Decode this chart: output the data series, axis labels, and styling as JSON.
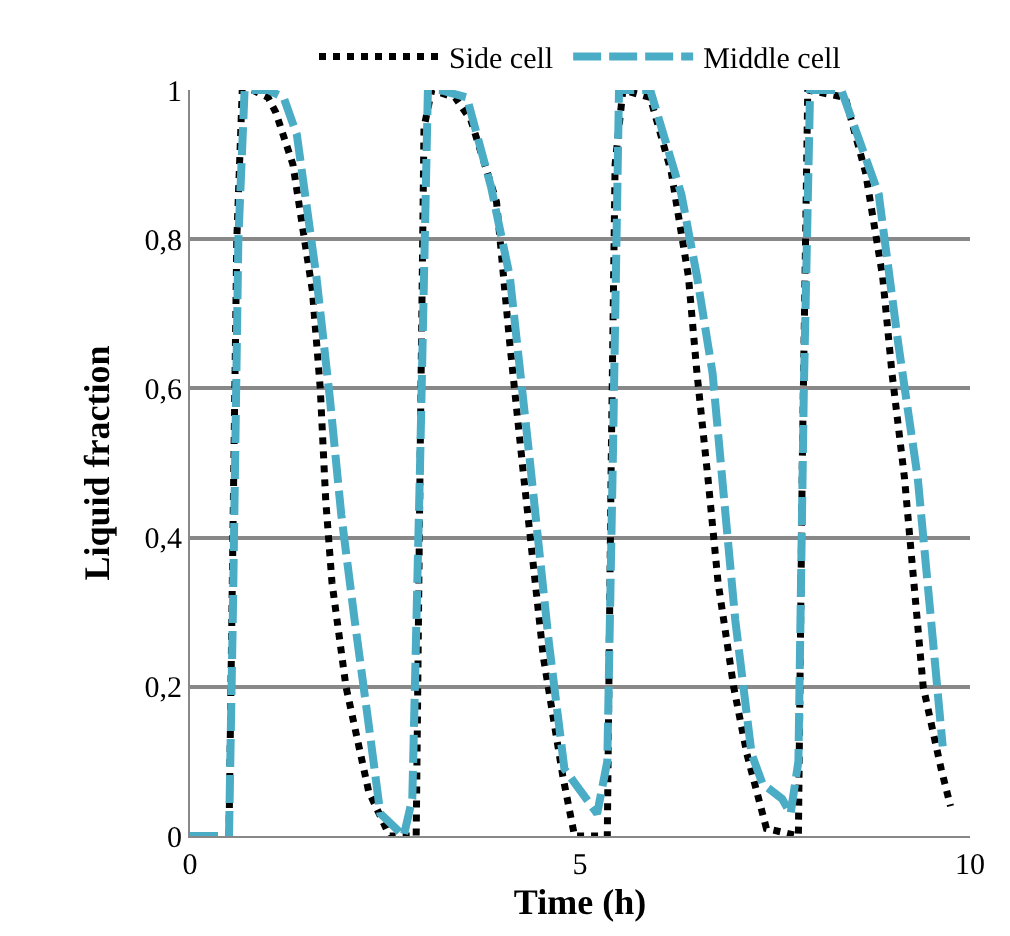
{
  "chart_data": {
    "type": "line",
    "xlabel": "Time (h)",
    "ylabel": "Liquid fraction",
    "xlim": [
      0,
      10
    ],
    "xticks": [
      0,
      5,
      10
    ],
    "ylim": [
      0,
      1
    ],
    "yticks": [
      0,
      {
        "value": 0.2,
        "label": "0,2"
      },
      {
        "value": 0.4,
        "label": "0,4"
      },
      {
        "value": 0.6,
        "label": "0,6"
      },
      {
        "value": 0.8,
        "label": "0,8"
      },
      1
    ],
    "grid": "y",
    "legend": "top",
    "series": [
      {
        "name": "Side cell",
        "color": "#000000",
        "line_style": "dotted",
        "x": [
          0.5,
          0.55,
          0.6,
          0.67,
          0.8,
          1.0,
          1.1,
          1.32,
          1.57,
          1.67,
          1.74,
          1.82,
          2.0,
          2.29,
          2.56,
          2.9,
          2.95,
          3.0,
          3.1,
          3.4,
          3.6,
          3.93,
          4.1,
          4.28,
          4.53,
          4.78,
          4.93,
          5.35,
          5.4,
          5.45,
          5.55,
          5.9,
          6.17,
          6.39,
          6.5,
          6.64,
          6.77,
          6.97,
          7.14,
          7.39,
          7.8,
          7.85,
          7.92,
          8.4,
          8.66,
          8.88,
          9.0,
          9.16,
          9.28,
          9.4,
          9.63,
          9.75
        ],
        "values": [
          0,
          0.4,
          0.8,
          1,
          1,
          0.99,
          0.97,
          0.9,
          0.73,
          0.6,
          0.45,
          0.34,
          0.2,
          0.06,
          0,
          0,
          0.5,
          0.95,
          1,
          0.99,
          0.96,
          0.85,
          0.66,
          0.48,
          0.24,
          0.08,
          0,
          0,
          0.5,
          0.9,
          1,
          0.99,
          0.89,
          0.75,
          0.62,
          0.48,
          0.34,
          0.2,
          0.11,
          0.01,
          0,
          0.5,
          1,
          0.99,
          0.89,
          0.75,
          0.62,
          0.48,
          0.34,
          0.2,
          0.09,
          0.04
        ]
      },
      {
        "name": "Middle cell",
        "color": "#4bacc6",
        "line_style": "dashed",
        "x": [
          0,
          0.5,
          0.55,
          0.62,
          0.7,
          1.0,
          1.2,
          1.37,
          1.62,
          1.79,
          1.94,
          2.11,
          2.29,
          2.44,
          2.74,
          2.85,
          2.95,
          3.05,
          3.2,
          3.55,
          3.86,
          4.1,
          4.35,
          4.6,
          4.8,
          5.22,
          5.35,
          5.42,
          5.5,
          5.9,
          6.3,
          6.5,
          6.7,
          6.84,
          6.99,
          7.2,
          7.34,
          7.59,
          7.7,
          7.8,
          7.87,
          7.95,
          8.35,
          8.83,
          9.08,
          9.33,
          9.5,
          9.65
        ],
        "values": [
          0,
          0,
          0.3,
          0.8,
          1,
          1,
          0.99,
          0.94,
          0.75,
          0.59,
          0.43,
          0.29,
          0.15,
          0.03,
          0,
          0.05,
          0.5,
          1,
          1,
          0.99,
          0.87,
          0.75,
          0.51,
          0.26,
          0.09,
          0.03,
          0.1,
          0.5,
          1,
          1,
          0.86,
          0.75,
          0.62,
          0.46,
          0.29,
          0.11,
          0.07,
          0.05,
          0.03,
          0.1,
          0.6,
          1,
          1,
          0.86,
          0.66,
          0.48,
          0.29,
          0.12
        ]
      }
    ]
  }
}
